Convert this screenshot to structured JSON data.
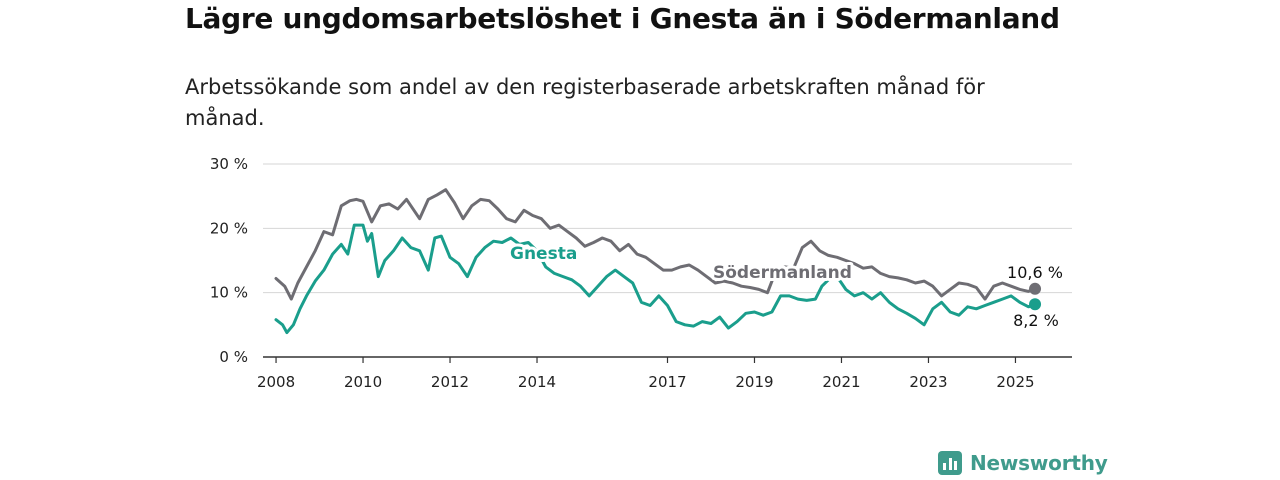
{
  "header": {
    "title": "Lägre ungdomsarbetslöshet i Gnesta än i Södermanland",
    "subtitle": "Arbetssökande som andel av den registerbaserade arbetskraften månad för månad."
  },
  "brand": {
    "name": "Newsworthy",
    "icon": "newsworthy-logo-icon",
    "color": "#3f9b8c"
  },
  "chart_data": {
    "type": "line",
    "title": "Lägre ungdomsarbetslöshet i Gnesta än i Södermanland",
    "subtitle": "Arbetssökande som andel av den registerbaserade arbetskraften månad för månad.",
    "xlabel": "",
    "ylabel": "",
    "ylim": [
      0,
      30
    ],
    "xlim": [
      2007.7,
      2026.3
    ],
    "grid": "horizontal",
    "yticks": [
      {
        "value": 0,
        "label": "0 %"
      },
      {
        "value": 10,
        "label": "10 %"
      },
      {
        "value": 20,
        "label": "20 %"
      },
      {
        "value": 30,
        "label": "30 %"
      }
    ],
    "xticks": [
      {
        "value": 2008,
        "label": "2008"
      },
      {
        "value": 2010,
        "label": "2010"
      },
      {
        "value": 2012,
        "label": "2012"
      },
      {
        "value": 2014,
        "label": "2014"
      },
      {
        "value": 2017,
        "label": "2017"
      },
      {
        "value": 2019,
        "label": "2019"
      },
      {
        "value": 2021,
        "label": "2021"
      },
      {
        "value": 2023,
        "label": "2023"
      },
      {
        "value": 2025,
        "label": "2025"
      }
    ],
    "series": [
      {
        "name": "Södermanland",
        "color": "#6e6d73",
        "end_label": "10,6 %",
        "x": [
          2008.0,
          2008.2,
          2008.35,
          2008.5,
          2008.7,
          2008.9,
          2009.1,
          2009.3,
          2009.5,
          2009.7,
          2009.85,
          2010.0,
          2010.2,
          2010.4,
          2010.6,
          2010.8,
          2011.0,
          2011.1,
          2011.3,
          2011.5,
          2011.7,
          2011.9,
          2012.1,
          2012.3,
          2012.5,
          2012.7,
          2012.9,
          2013.1,
          2013.3,
          2013.5,
          2013.7,
          2013.9,
          2014.1,
          2014.3,
          2014.5,
          2014.7,
          2014.9,
          2015.1,
          2015.3,
          2015.5,
          2015.7,
          2015.9,
          2016.1,
          2016.3,
          2016.5,
          2016.7,
          2016.9,
          2017.1,
          2017.3,
          2017.5,
          2017.7,
          2017.9,
          2018.1,
          2018.3,
          2018.5,
          2018.7,
          2018.9,
          2019.1,
          2019.3,
          2019.5,
          2019.7,
          2019.9,
          2020.1,
          2020.3,
          2020.5,
          2020.7,
          2020.9,
          2021.1,
          2021.3,
          2021.5,
          2021.7,
          2021.9,
          2022.1,
          2022.3,
          2022.5,
          2022.7,
          2022.9,
          2023.1,
          2023.3,
          2023.5,
          2023.7,
          2023.9,
          2024.1,
          2024.3,
          2024.5,
          2024.7,
          2024.9,
          2025.1,
          2025.3,
          2025.45
        ],
        "values": [
          12.2,
          11.0,
          9.0,
          11.5,
          14.0,
          16.5,
          19.5,
          19.0,
          23.5,
          24.3,
          24.5,
          24.2,
          21.0,
          23.5,
          23.8,
          23.0,
          24.5,
          23.5,
          21.5,
          24.5,
          25.2,
          26.0,
          24.0,
          21.5,
          23.5,
          24.5,
          24.3,
          23.0,
          21.5,
          21.0,
          22.8,
          22.0,
          21.5,
          20.0,
          20.5,
          19.5,
          18.5,
          17.2,
          17.8,
          18.5,
          18.0,
          16.5,
          17.5,
          16.0,
          15.5,
          14.5,
          13.5,
          13.5,
          14.0,
          14.3,
          13.5,
          12.5,
          11.5,
          11.8,
          11.5,
          11.0,
          10.8,
          10.5,
          10.0,
          13.5,
          14.0,
          13.8,
          17.0,
          18.0,
          16.5,
          15.8,
          15.5,
          15.0,
          14.5,
          13.8,
          14.0,
          13.0,
          12.5,
          12.3,
          12.0,
          11.5,
          11.8,
          11.0,
          9.5,
          10.5,
          11.5,
          11.3,
          10.8,
          9.0,
          11.0,
          11.5,
          11.0,
          10.5,
          10.2,
          10.6
        ]
      },
      {
        "name": "Gnesta",
        "color": "#1a9e8c",
        "end_label": "8,2 %",
        "x": [
          2008.0,
          2008.15,
          2008.25,
          2008.4,
          2008.55,
          2008.7,
          2008.9,
          2009.1,
          2009.3,
          2009.5,
          2009.65,
          2009.8,
          2010.0,
          2010.1,
          2010.2,
          2010.35,
          2010.5,
          2010.7,
          2010.9,
          2011.1,
          2011.3,
          2011.5,
          2011.65,
          2011.8,
          2012.0,
          2012.2,
          2012.4,
          2012.6,
          2012.8,
          2013.0,
          2013.2,
          2013.4,
          2013.6,
          2013.8,
          2014.0,
          2014.2,
          2014.4,
          2014.6,
          2014.8,
          2015.0,
          2015.2,
          2015.4,
          2015.6,
          2015.8,
          2016.0,
          2016.2,
          2016.4,
          2016.6,
          2016.8,
          2017.0,
          2017.2,
          2017.4,
          2017.6,
          2017.8,
          2018.0,
          2018.2,
          2018.4,
          2018.6,
          2018.8,
          2019.0,
          2019.2,
          2019.4,
          2019.6,
          2019.8,
          2020.0,
          2020.2,
          2020.4,
          2020.55,
          2020.7,
          2020.9,
          2021.1,
          2021.3,
          2021.5,
          2021.7,
          2021.9,
          2022.1,
          2022.3,
          2022.5,
          2022.7,
          2022.9,
          2023.1,
          2023.3,
          2023.5,
          2023.7,
          2023.9,
          2024.1,
          2024.3,
          2024.5,
          2024.7,
          2024.9,
          2025.1,
          2025.3,
          2025.45
        ],
        "values": [
          5.8,
          5.0,
          3.8,
          5.0,
          7.5,
          9.5,
          11.8,
          13.5,
          16.0,
          17.5,
          16.0,
          20.5,
          20.5,
          18.0,
          19.2,
          12.5,
          15.0,
          16.5,
          18.5,
          17.0,
          16.5,
          13.5,
          18.5,
          18.8,
          15.5,
          14.5,
          12.5,
          15.5,
          17.0,
          18.0,
          17.8,
          18.5,
          17.5,
          17.8,
          16.5,
          14.0,
          13.0,
          12.5,
          12.0,
          11.0,
          9.5,
          11.0,
          12.5,
          13.5,
          12.5,
          11.5,
          8.5,
          8.0,
          9.5,
          8.0,
          5.5,
          5.0,
          4.8,
          5.5,
          5.2,
          6.2,
          4.5,
          5.5,
          6.8,
          7.0,
          6.5,
          7.0,
          9.5,
          9.5,
          9.0,
          8.8,
          9.0,
          11.0,
          12.0,
          12.5,
          10.5,
          9.5,
          10.0,
          9.0,
          10.0,
          8.5,
          7.5,
          6.8,
          6.0,
          5.0,
          7.5,
          8.5,
          7.0,
          6.5,
          7.8,
          7.5,
          8.0,
          8.5,
          9.0,
          9.5,
          8.5,
          7.8,
          8.2
        ]
      }
    ]
  }
}
